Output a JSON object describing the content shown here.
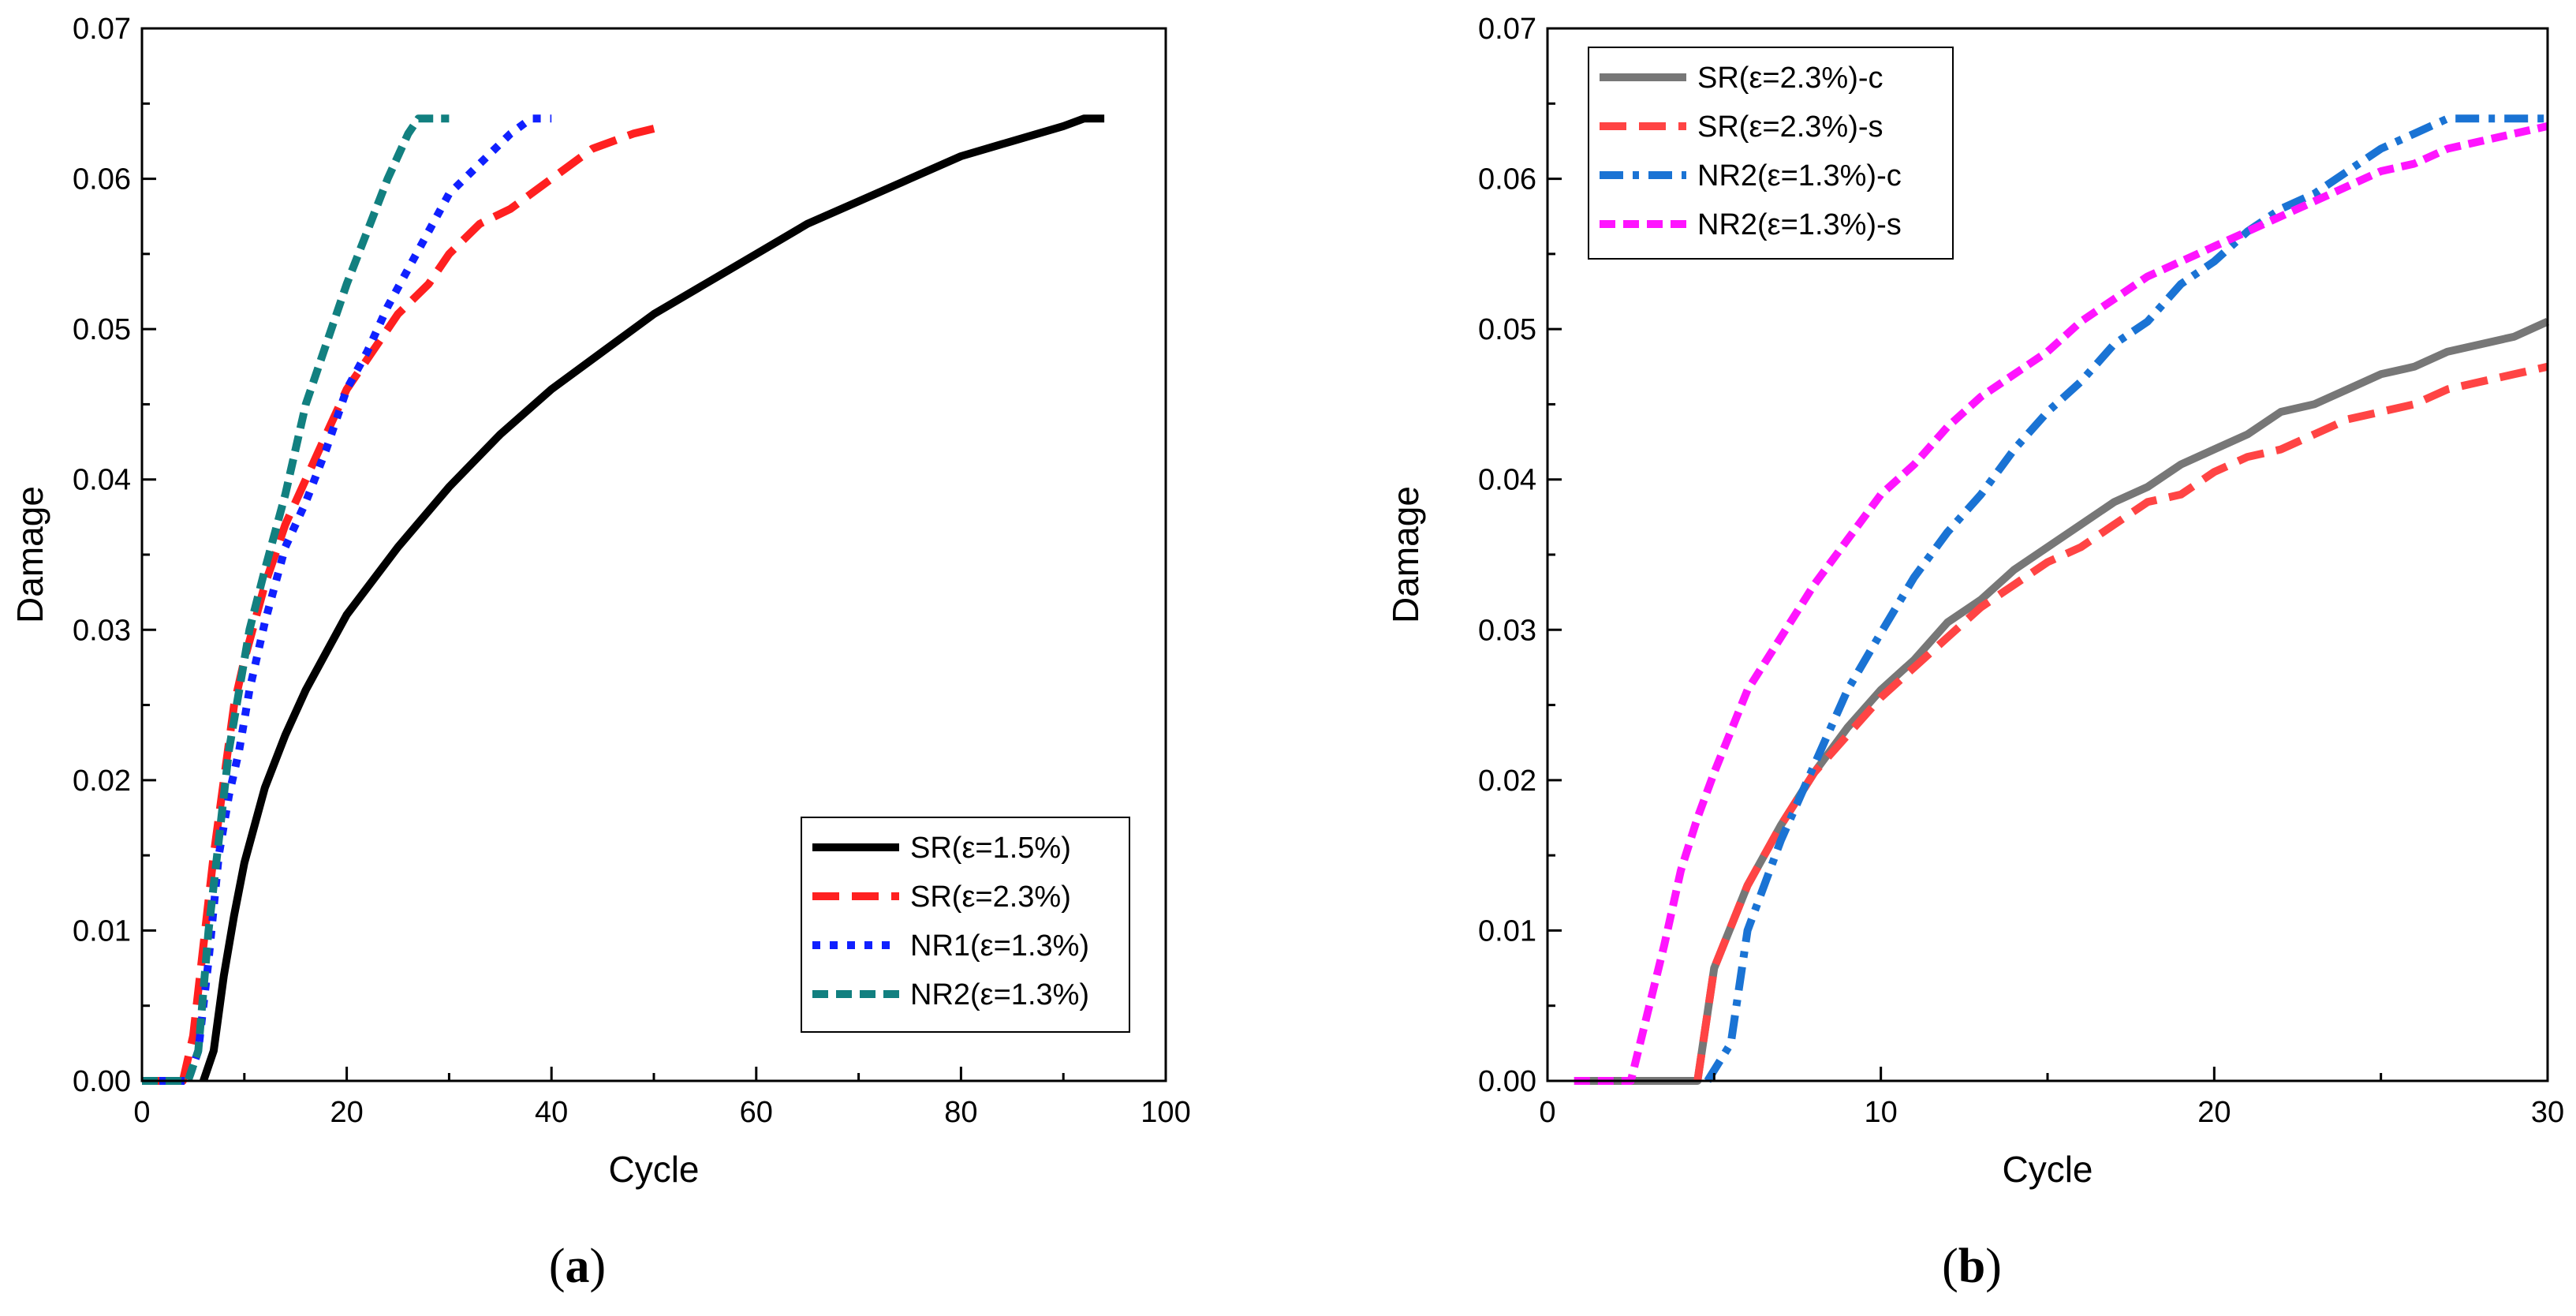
{
  "figure": {
    "panels": [
      {
        "label_open": "(",
        "label_letter": "a",
        "label_close": ")"
      },
      {
        "label_open": "(",
        "label_letter": "b",
        "label_close": ")"
      }
    ]
  },
  "chart_data": [
    {
      "type": "line",
      "xlabel": "Cycle",
      "ylabel": "Damage",
      "xlim": [
        0,
        100
      ],
      "ylim": [
        0,
        0.07
      ],
      "xticks": [
        "0",
        "20",
        "40",
        "60",
        "80",
        "100"
      ],
      "yticks": [
        "0.00",
        "0.01",
        "0.02",
        "0.03",
        "0.04",
        "0.05",
        "0.06",
        "0.07"
      ],
      "legend_position": "bottom-right",
      "grid": false,
      "series": [
        {
          "name": "SR(ε=1.5%)",
          "color": "#000000",
          "dash": "solid",
          "x": [
            6,
            7,
            8,
            9,
            10,
            12,
            14,
            16,
            18,
            20,
            25,
            30,
            35,
            40,
            45,
            50,
            55,
            60,
            65,
            70,
            75,
            80,
            85,
            90,
            92,
            94
          ],
          "y": [
            0.0,
            0.002,
            0.007,
            0.011,
            0.0145,
            0.0195,
            0.023,
            0.026,
            0.0285,
            0.031,
            0.0355,
            0.0395,
            0.043,
            0.046,
            0.0485,
            0.051,
            0.053,
            0.055,
            0.057,
            0.0585,
            0.06,
            0.0615,
            0.0625,
            0.0635,
            0.064,
            0.064
          ]
        },
        {
          "name": "SR(ε=2.3%)",
          "color": "#ff2020",
          "dash": "long-dash",
          "x": [
            0,
            4,
            5,
            6,
            7,
            8,
            9,
            10,
            12,
            14,
            16,
            18,
            20,
            22,
            25,
            28,
            30,
            33,
            36,
            40,
            44,
            48,
            51
          ],
          "y": [
            0.0,
            0.0,
            0.003,
            0.009,
            0.015,
            0.02,
            0.025,
            0.028,
            0.033,
            0.037,
            0.04,
            0.043,
            0.046,
            0.048,
            0.051,
            0.053,
            0.055,
            0.057,
            0.058,
            0.06,
            0.062,
            0.063,
            0.0635
          ]
        },
        {
          "name": "NR1(ε=1.3%)",
          "color": "#1020ff",
          "dash": "dot",
          "x": [
            0,
            4.5,
            5.5,
            6.5,
            7.5,
            8.5,
            9.5,
            10.5,
            12,
            14,
            16,
            18,
            20,
            22,
            24,
            26,
            28,
            30,
            33,
            36,
            38,
            40
          ],
          "y": [
            0.0,
            0.0,
            0.002,
            0.008,
            0.015,
            0.019,
            0.022,
            0.026,
            0.0305,
            0.0355,
            0.0385,
            0.042,
            0.046,
            0.0485,
            0.0515,
            0.054,
            0.0565,
            0.059,
            0.061,
            0.063,
            0.064,
            0.064
          ]
        },
        {
          "name": "NR2(ε=1.3%)",
          "color": "#128080",
          "dash": "short-dash",
          "x": [
            0,
            4.5,
            5.5,
            6.5,
            7.5,
            8.5,
            9.5,
            10.5,
            12,
            14,
            16,
            18,
            20,
            22,
            24,
            25,
            26,
            27,
            28,
            30
          ],
          "y": [
            0.0,
            0.0,
            0.002,
            0.01,
            0.016,
            0.022,
            0.026,
            0.03,
            0.034,
            0.039,
            0.045,
            0.049,
            0.053,
            0.0565,
            0.06,
            0.0615,
            0.063,
            0.064,
            0.064,
            0.064
          ]
        }
      ]
    },
    {
      "type": "line",
      "xlabel": "Cycle",
      "ylabel": "Damage",
      "xlim": [
        0,
        30
      ],
      "ylim": [
        0,
        0.07
      ],
      "xticks": [
        "0",
        "10",
        "20",
        "30"
      ],
      "yticks": [
        "0.00",
        "0.01",
        "0.02",
        "0.03",
        "0.04",
        "0.05",
        "0.06",
        "0.07"
      ],
      "legend_position": "top-left",
      "grid": false,
      "series": [
        {
          "name": "SR(ε=2.3%)-c",
          "color": "#777777",
          "dash": "solid",
          "x": [
            0.8,
            1,
            2,
            3,
            4,
            4.5,
            5,
            6,
            7,
            8,
            9,
            10,
            11,
            12,
            13,
            14,
            15,
            16,
            17,
            18,
            19,
            20,
            21,
            22,
            23,
            24,
            25,
            26,
            27,
            28,
            29,
            30
          ],
          "y": [
            0.0,
            0.0,
            0.0,
            0.0,
            0.0,
            0.0,
            0.0075,
            0.013,
            0.017,
            0.0205,
            0.0235,
            0.026,
            0.028,
            0.0305,
            0.032,
            0.034,
            0.0355,
            0.037,
            0.0385,
            0.0395,
            0.041,
            0.042,
            0.043,
            0.0445,
            0.045,
            0.046,
            0.047,
            0.0475,
            0.0485,
            0.049,
            0.0495,
            0.0505
          ]
        },
        {
          "name": "SR(ε=2.3%)-s",
          "color": "#ff4444",
          "dash": "long-dash",
          "x": [
            4.5,
            5,
            6,
            7,
            8,
            9,
            10,
            11,
            12,
            13,
            14,
            15,
            16,
            17,
            18,
            19,
            20,
            21,
            22,
            23,
            24,
            25,
            26,
            27,
            28,
            29,
            30
          ],
          "y": [
            0.0,
            0.0075,
            0.013,
            0.017,
            0.0205,
            0.023,
            0.0255,
            0.0275,
            0.0295,
            0.0315,
            0.033,
            0.0345,
            0.0355,
            0.037,
            0.0385,
            0.039,
            0.0405,
            0.0415,
            0.042,
            0.043,
            0.044,
            0.0445,
            0.045,
            0.046,
            0.0465,
            0.047,
            0.0475
          ]
        },
        {
          "name": "NR2(ε=1.3%)-c",
          "color": "#1a73d4",
          "dash": "dash-dot",
          "x": [
            4.8,
            5.5,
            6,
            7,
            8,
            9,
            10,
            11,
            12,
            13,
            14,
            15,
            16,
            17,
            18,
            19,
            20,
            21,
            22,
            23,
            24,
            25,
            26,
            27,
            28,
            29,
            30
          ],
          "y": [
            0.0,
            0.0025,
            0.01,
            0.016,
            0.021,
            0.026,
            0.0298,
            0.0335,
            0.0365,
            0.039,
            0.042,
            0.0445,
            0.0465,
            0.049,
            0.0505,
            0.053,
            0.0545,
            0.0565,
            0.058,
            0.059,
            0.0605,
            0.062,
            0.063,
            0.064,
            0.064,
            0.064,
            0.064
          ]
        },
        {
          "name": "NR2(ε=1.3%)-s",
          "color": "#ff14ff",
          "dash": "short-dash",
          "x": [
            0.8,
            2.5,
            3,
            3.5,
            4,
            4.5,
            5,
            6,
            7,
            8,
            9,
            10,
            11,
            12,
            13,
            14,
            15,
            16,
            17,
            18,
            19,
            20,
            21,
            22,
            23,
            24,
            25,
            26,
            27,
            28,
            29,
            30
          ],
          "y": [
            0.0,
            0.0,
            0.0045,
            0.009,
            0.014,
            0.0175,
            0.0205,
            0.026,
            0.0295,
            0.033,
            0.036,
            0.039,
            0.041,
            0.0435,
            0.0455,
            0.047,
            0.0485,
            0.0505,
            0.052,
            0.0535,
            0.0545,
            0.0555,
            0.0565,
            0.0575,
            0.0585,
            0.0595,
            0.0605,
            0.061,
            0.062,
            0.0625,
            0.063,
            0.0635
          ]
        }
      ]
    }
  ]
}
